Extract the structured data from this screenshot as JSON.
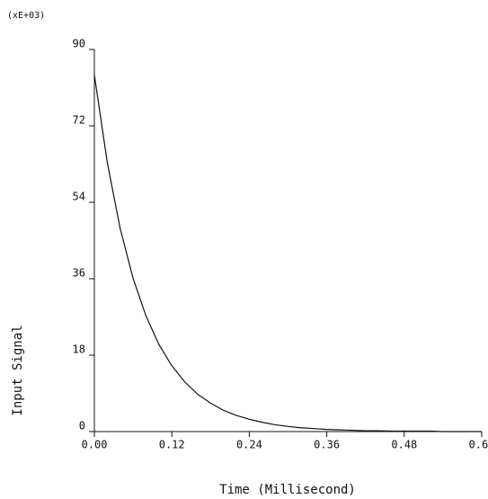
{
  "chart_data": {
    "type": "line",
    "x_label": "Time (Millisecond)",
    "y_label": "Input Signal",
    "y_multiplier": "(xE+03)",
    "x": [
      0,
      0.02,
      0.04,
      0.06,
      0.08,
      0.1,
      0.12,
      0.14,
      0.16,
      0.18,
      0.2,
      0.22,
      0.24,
      0.26,
      0.28,
      0.3,
      0.32,
      0.34,
      0.36,
      0.38,
      0.4,
      0.42,
      0.44,
      0.46,
      0.48,
      0.5,
      0.52,
      0.54,
      0.56,
      0.58,
      0.6
    ],
    "series": [
      {
        "color": "#111111",
        "values": [
          84,
          63.4,
          47.8,
          36.1,
          27.2,
          20.5,
          15.5,
          11.7,
          8.8,
          6.7,
          5.0,
          3.8,
          2.9,
          2.2,
          1.6,
          1.2,
          0.9,
          0.7,
          0.5,
          0.4,
          0.3,
          0.2,
          0.2,
          0.1,
          0.1,
          0.1,
          0.1,
          0.0,
          0.0,
          0.0,
          0.0
        ]
      }
    ],
    "xlim": [
      0,
      0.6
    ],
    "xticks": [
      {
        "value": 0,
        "label": "0.00"
      },
      {
        "value": 0.12,
        "label": "0.12"
      },
      {
        "value": 0.24,
        "label": "0.24"
      },
      {
        "value": 0.36,
        "label": "0.36"
      },
      {
        "value": 0.48,
        "label": "0.48"
      },
      {
        "value": 0.6,
        "label": "0.60"
      }
    ],
    "ylim": [
      0,
      90
    ],
    "yticks": [
      0,
      18,
      36,
      54,
      72,
      90
    ]
  }
}
